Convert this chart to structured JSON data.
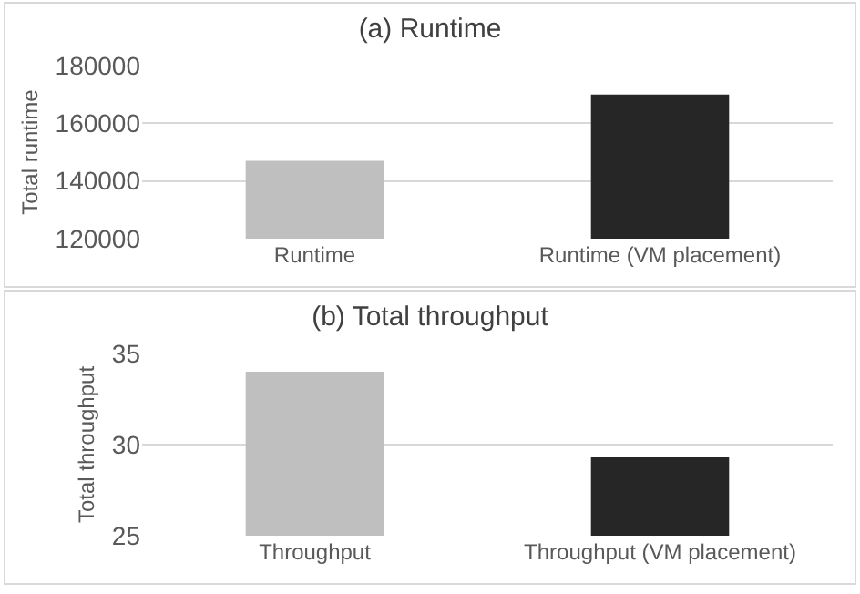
{
  "chart_data": [
    {
      "type": "bar",
      "title": "(a) Runtime",
      "ylabel": "Total runtime",
      "categories": [
        "Runtime",
        "Runtime (VM placement)"
      ],
      "values": [
        147000,
        170000
      ],
      "colors": [
        "#bfbfbf",
        "#262626"
      ],
      "ylim": [
        120000,
        180000
      ],
      "yticks": [
        120000,
        140000,
        160000,
        180000
      ],
      "grid": "y",
      "legend": false
    },
    {
      "type": "bar",
      "title": "(b) Total throughput",
      "ylabel": "Total throughput",
      "categories": [
        "Throughput",
        "Throughput (VM placement)"
      ],
      "values": [
        34,
        29.3
      ],
      "colors": [
        "#bfbfbf",
        "#262626"
      ],
      "ylim": [
        25,
        35
      ],
      "yticks": [
        25,
        30,
        35
      ],
      "grid": "y",
      "legend": false
    }
  ]
}
